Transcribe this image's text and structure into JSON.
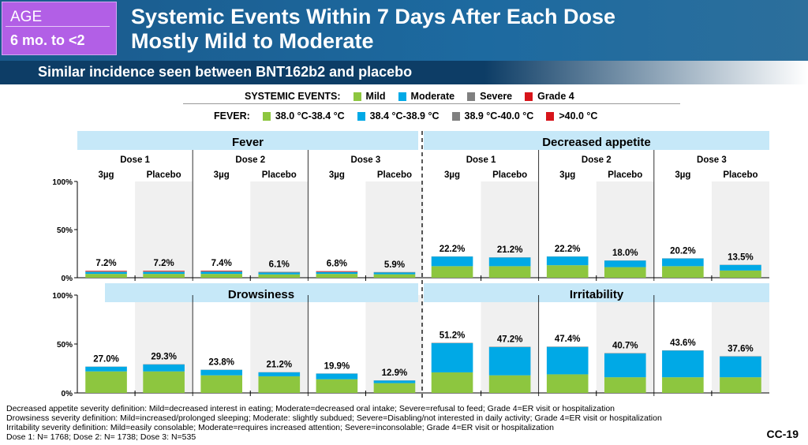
{
  "header": {
    "age_label": "AGE",
    "age_value": "6 mo. to <2",
    "title_line1": "Systemic Events Within 7 Days After Each Dose",
    "title_line2": "Mostly Mild to Moderate",
    "subtitle": "Similar incidence seen between BNT162b2 and placebo"
  },
  "legend": {
    "systemic_label": "SYSTEMIC EVENTS:",
    "systemic": [
      "Mild",
      "Moderate",
      "Severe",
      "Grade 4"
    ],
    "fever_label": "FEVER:",
    "fever": [
      "38.0 °C-38.4 °C",
      "38.4 °C-38.9 °C",
      "38.9 °C-40.0 °C",
      ">40.0 °C"
    ]
  },
  "colors": [
    "#8dc63f",
    "#00a9e6",
    "#808080",
    "#d7141a"
  ],
  "chart_data": {
    "type": "bar",
    "stacked": true,
    "ylim": [
      0,
      100
    ],
    "yticks": [
      "0%",
      "50%",
      "100%"
    ],
    "doses": [
      "Dose 1",
      "Dose 2",
      "Dose 3"
    ],
    "groups": [
      "3µg",
      "Placebo"
    ],
    "panels": [
      {
        "title": "Fever",
        "totals": [
          "7.2%",
          "7.2%",
          "7.4%",
          "6.1%",
          "6.8%",
          "5.9%"
        ],
        "segments": [
          [
            4,
            2,
            0.6,
            0.6
          ],
          [
            4,
            2,
            0.6,
            0.6
          ],
          [
            4,
            2.2,
            0.6,
            0.6
          ],
          [
            3.5,
            1.8,
            0.8,
            0
          ],
          [
            4,
            1.8,
            0.4,
            0.6
          ],
          [
            3.6,
            1.8,
            0.5,
            0
          ]
        ]
      },
      {
        "title": "Decreased appetite",
        "totals": [
          "22.2%",
          "21.2%",
          "22.2%",
          "18.0%",
          "20.2%",
          "13.5%"
        ],
        "segments": [
          [
            12,
            10,
            0.2,
            0
          ],
          [
            12,
            9,
            0.2,
            0
          ],
          [
            13,
            9,
            0.2,
            0
          ],
          [
            11,
            6.8,
            0.2,
            0
          ],
          [
            12,
            8,
            0.2,
            0
          ],
          [
            7.5,
            5.8,
            0.2,
            0
          ]
        ]
      },
      {
        "title": "Drowsiness",
        "totals": [
          "27.0%",
          "29.3%",
          "23.8%",
          "21.2%",
          "19.9%",
          "12.9%"
        ],
        "segments": [
          [
            22,
            4.8,
            0.2,
            0
          ],
          [
            22,
            7,
            0.3,
            0
          ],
          [
            18,
            5.6,
            0.2,
            0
          ],
          [
            17,
            4,
            0.2,
            0
          ],
          [
            14,
            5.7,
            0.2,
            0
          ],
          [
            10,
            2.7,
            0.2,
            0
          ]
        ]
      },
      {
        "title": "Irritability",
        "totals": [
          "51.2%",
          "47.2%",
          "47.4%",
          "40.7%",
          "43.6%",
          "37.6%"
        ],
        "segments": [
          [
            21,
            29.8,
            0.4,
            0
          ],
          [
            18,
            28.8,
            0.4,
            0
          ],
          [
            19,
            28,
            0.4,
            0
          ],
          [
            16,
            24.3,
            0.4,
            0
          ],
          [
            16,
            27.3,
            0.3,
            0
          ],
          [
            16,
            21.3,
            0.3,
            0
          ]
        ]
      }
    ]
  },
  "footnotes": [
    "Decreased appetite severity definition: Mild=decreased interest in eating; Moderate=decreased oral intake; Severe=refusal to feed; Grade 4=ER visit or hospitalization",
    "Drowsiness severity definition: Mild=increased/prolonged sleeping; Moderate: slightly subdued; Severe=Disabling/not interested in daily activity; Grade 4=ER visit or hospitalization",
    "Irritability severity definition: Mild=easily consolable; Moderate=requires increased attention; Severe=inconsolable; Grade 4=ER visit or hospitalization",
    "Dose 1: N= 1768; Dose 2: N= 1738; Dose 3: N=535"
  ],
  "slide_id": "CC-19"
}
